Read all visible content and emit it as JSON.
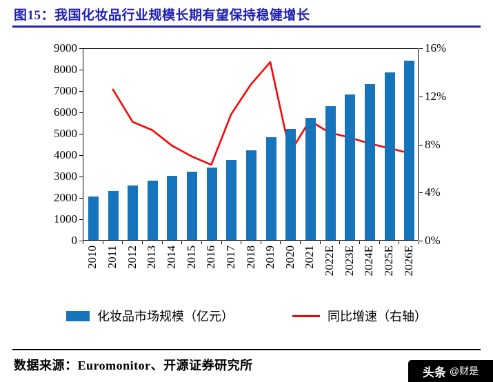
{
  "figure": {
    "title": "图15：我国化妆品行业规模长期有望保持稳健增长",
    "source": "数据来源：Euromonitor、开源证券研究所"
  },
  "watermark": {
    "brand": "头条",
    "handle": "@财是"
  },
  "colors": {
    "accent_blue": "#2020b2",
    "bar_blue": "#1574bc",
    "line_red": "#ff0000"
  },
  "legend": [
    {
      "label": "化妆品市场规模（亿元）",
      "swatch": "bar"
    },
    {
      "label": "同比增速（右轴）",
      "swatch": "line"
    }
  ],
  "chart_data": {
    "type": "bar+line combo",
    "categories": [
      "2010",
      "2011",
      "2012",
      "2013",
      "2014",
      "2015",
      "2016",
      "2017",
      "2018",
      "2019",
      "2020",
      "2021",
      "2022E",
      "2023E",
      "2024E",
      "2025E",
      "2026E"
    ],
    "series": [
      {
        "name": "化妆品市场规模（亿元）",
        "type": "bar",
        "axis": "left",
        "values": [
          2050,
          2300,
          2550,
          2780,
          3000,
          3200,
          3400,
          3750,
          4200,
          4800,
          5200,
          5700,
          6250,
          6800,
          7300,
          7850,
          8400
        ]
      },
      {
        "name": "同比增速（右轴）",
        "type": "line",
        "axis": "right",
        "values_percent": [
          null,
          12.6,
          9.9,
          9.2,
          7.9,
          7.0,
          6.3,
          10.5,
          13.0,
          14.9,
          7.3,
          10.0,
          9.0,
          8.6,
          8.1,
          7.7,
          7.3
        ]
      }
    ],
    "left_axis": {
      "min": 0,
      "max": 9000,
      "ticks": [
        "9000",
        "8000",
        "7000",
        "6000",
        "5000",
        "4000",
        "3000",
        "2000",
        "1000",
        "0"
      ]
    },
    "right_axis": {
      "min": 0,
      "max": 16,
      "ticks": [
        "16%",
        "12%",
        "8%",
        "4%",
        "0%"
      ]
    },
    "grid": false,
    "legend_position": "bottom"
  }
}
